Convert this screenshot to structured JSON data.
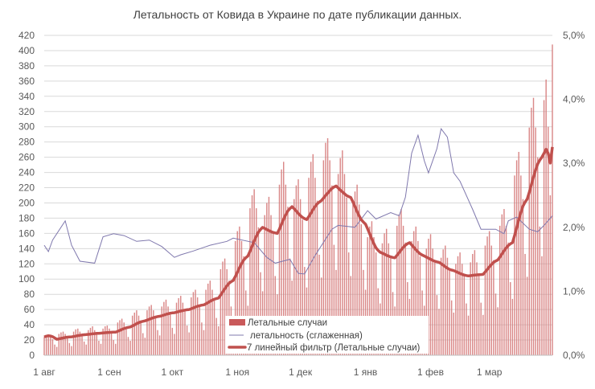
{
  "chart_data": {
    "type": "bar",
    "title": "Летальность от Ковида в Украине по дате публикации данных.",
    "x_ticks": [
      "1 авг",
      "1 сен",
      "1 окт",
      "1 ноя",
      "1 дек",
      "1 янв",
      "1 фев",
      "1 мар"
    ],
    "x_range": [
      "01.08",
      "31.03"
    ],
    "y_left": {
      "min": 0,
      "max": 420,
      "step": 20,
      "ticks": [
        "0",
        "20",
        "40",
        "60",
        "80",
        "100",
        "120",
        "140",
        "160",
        "180",
        "200",
        "220",
        "240",
        "260",
        "280",
        "300",
        "320",
        "340",
        "360",
        "380",
        "400",
        "420"
      ]
    },
    "y_right": {
      "min": 0,
      "max": 5,
      "unit": "%",
      "ticks": [
        "0,0%",
        "1,0%",
        "2,0%",
        "3,0%",
        "4,0%",
        "5,0%"
      ]
    },
    "grid": "horizontal",
    "legend_position": "bottom-center-inside",
    "legend": [
      "Летальные случаи",
      "летальность (сглаженная)",
      "7 линейный фильтр (Летальные случаи)"
    ],
    "colors": {
      "bars": "#d47373",
      "moving_average": "#c0504d",
      "lethality": "#7f78ad",
      "grid": "#d9d9d9"
    },
    "series": [
      {
        "name": "Летальные случаи",
        "kind": "bar",
        "axis": "left",
        "values": [
          24,
          26,
          27,
          24,
          21,
          14,
          11,
          28,
          30,
          31,
          28,
          24,
          16,
          12,
          31,
          34,
          35,
          31,
          27,
          18,
          14,
          33,
          36,
          38,
          33,
          29,
          19,
          15,
          35,
          38,
          39,
          35,
          30,
          20,
          15,
          43,
          46,
          48,
          43,
          37,
          24,
          19,
          52,
          56,
          59,
          52,
          45,
          29,
          23,
          59,
          64,
          66,
          59,
          51,
          33,
          26,
          64,
          70,
          73,
          64,
          56,
          36,
          28,
          69,
          75,
          78,
          69,
          60,
          39,
          30,
          76,
          83,
          86,
          76,
          66,
          43,
          33,
          86,
          94,
          98,
          86,
          75,
          49,
          38,
          113,
          123,
          127,
          113,
          98,
          64,
          49,
          150,
          163,
          169,
          150,
          130,
          85,
          65,
          193,
          210,
          218,
          193,
          168,
          109,
          84,
          184,
          200,
          208,
          184,
          160,
          104,
          80,
          224,
          244,
          254,
          224,
          195,
          127,
          98,
          205,
          223,
          231,
          205,
          178,
          116,
          89,
          233,
          254,
          264,
          233,
          203,
          132,
          102,
          256,
          279,
          285,
          256,
          223,
          145,
          112,
          238,
          259,
          269,
          238,
          207,
          135,
          104,
          198,
          215,
          224,
          198,
          172,
          112,
          86,
          155,
          169,
          176,
          155,
          135,
          88,
          68,
          147,
          160,
          166,
          147,
          128,
          83,
          64,
          170,
          185,
          192,
          170,
          148,
          96,
          74,
          150,
          163,
          169,
          150,
          130,
          85,
          65,
          140,
          153,
          159,
          140,
          122,
          79,
          61,
          128,
          139,
          144,
          128,
          111,
          72,
          56,
          120,
          130,
          135,
          120,
          104,
          68,
          52,
          122,
          133,
          138,
          122,
          106,
          69,
          53,
          144,
          156,
          163,
          144,
          125,
          81,
          63,
          170,
          185,
          192,
          170,
          148,
          96,
          74,
          236,
          256,
          267,
          236,
          205,
          133,
          103,
          299,
          325,
          338,
          299,
          260,
          169,
          130,
          335,
          362,
          300,
          210,
          408
        ]
      },
      {
        "name": "летальность (сглаженная)",
        "kind": "line",
        "axis": "right",
        "unit": "%",
        "points": [
          [
            "01.08",
            1.72
          ],
          [
            "03.08",
            1.62
          ],
          [
            "05.08",
            1.8
          ],
          [
            "11.08",
            2.1
          ],
          [
            "14.08",
            1.72
          ],
          [
            "18.08",
            1.47
          ],
          [
            "25.08",
            1.44
          ],
          [
            "29.08",
            1.85
          ],
          [
            "03.09",
            1.9
          ],
          [
            "08.09",
            1.87
          ],
          [
            "14.09",
            1.78
          ],
          [
            "20.09",
            1.8
          ],
          [
            "26.09",
            1.7
          ],
          [
            "02.10",
            1.53
          ],
          [
            "05.10",
            1.57
          ],
          [
            "11.10",
            1.63
          ],
          [
            "19.10",
            1.72
          ],
          [
            "27.10",
            1.78
          ],
          [
            "30.10",
            1.83
          ],
          [
            "09.11",
            1.76
          ],
          [
            "15.11",
            1.53
          ],
          [
            "19.11",
            1.44
          ],
          [
            "26.11",
            1.5
          ],
          [
            "30.11",
            1.28
          ],
          [
            "03.12",
            1.27
          ],
          [
            "08.12",
            1.56
          ],
          [
            "16.12",
            1.97
          ],
          [
            "19.12",
            2.03
          ],
          [
            "27.12",
            2.0
          ],
          [
            "02.01",
            2.26
          ],
          [
            "06.01",
            2.13
          ],
          [
            "13.01",
            2.23
          ],
          [
            "17.01",
            2.18
          ],
          [
            "20.01",
            2.47
          ],
          [
            "23.01",
            3.16
          ],
          [
            "26.01",
            3.44
          ],
          [
            "29.01",
            3.04
          ],
          [
            "31.01",
            2.85
          ],
          [
            "04.02",
            3.23
          ],
          [
            "06.02",
            3.54
          ],
          [
            "09.02",
            3.41
          ],
          [
            "12.02",
            2.85
          ],
          [
            "15.02",
            2.72
          ],
          [
            "21.02",
            2.28
          ],
          [
            "25.02",
            1.97
          ],
          [
            "04.03",
            1.97
          ],
          [
            "08.03",
            1.9
          ],
          [
            "10.03",
            2.1
          ],
          [
            "14.03",
            2.16
          ],
          [
            "20.03",
            1.97
          ],
          [
            "24.03",
            1.93
          ],
          [
            "27.03",
            2.03
          ],
          [
            "31.03",
            2.18
          ]
        ]
      },
      {
        "name": "7 линейный фильтр (Летальные случаи)",
        "kind": "moving-average",
        "axis": "left",
        "period": 7,
        "of": "Летальные случаи"
      }
    ]
  }
}
